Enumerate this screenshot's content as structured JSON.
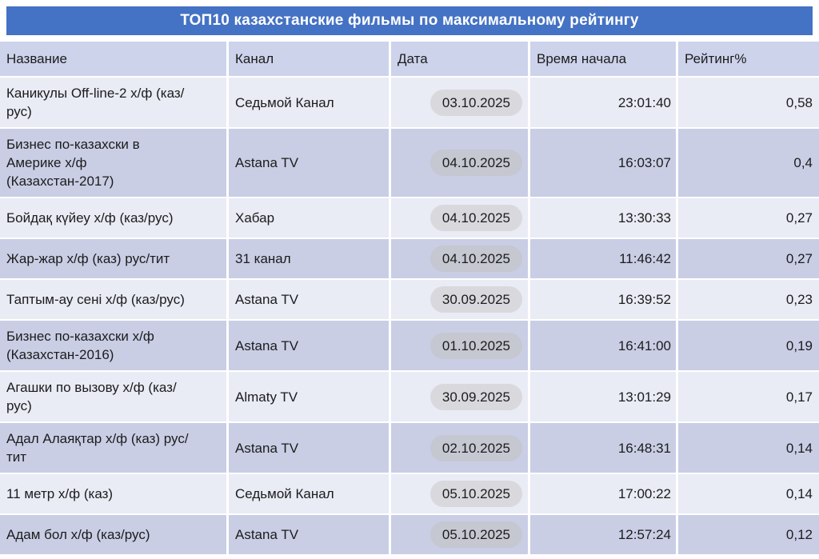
{
  "title": "ТОП10 казахстанские фильмы по максимальному рейтингу",
  "chart_data": {
    "type": "table",
    "title": "ТОП10 казахстанские фильмы по максимальному рейтингу",
    "columns": [
      "Название",
      "Канал",
      "Дата",
      "Время начала",
      "Рейтинг%"
    ],
    "rows": [
      {
        "name": "Каникулы Off-line-2 х/ф (каз/рус)",
        "channel": "Седьмой Канал",
        "date": "03.10.2025",
        "time": "23:01:40",
        "rating": "0,58"
      },
      {
        "name": "Бизнес по-казахски в Америке х/ф (Казахстан-2017)",
        "channel": "Astana TV",
        "date": "04.10.2025",
        "time": "16:03:07",
        "rating": "0,4"
      },
      {
        "name": "Бойдақ күйеу х/ф (каз/рус)",
        "channel": "Хабар",
        "date": "04.10.2025",
        "time": "13:30:33",
        "rating": "0,27"
      },
      {
        "name": "Жар-жар х/ф (каз) рус/тит",
        "channel": "31 канал",
        "date": "04.10.2025",
        "time": "11:46:42",
        "rating": "0,27"
      },
      {
        "name": "Таптым-ау сені х/ф (каз/рус)",
        "channel": "Astana TV",
        "date": "30.09.2025",
        "time": "16:39:52",
        "rating": "0,23"
      },
      {
        "name": "Бизнес по-казахски х/ф (Казахстан-2016)",
        "channel": "Astana TV",
        "date": "01.10.2025",
        "time": "16:41:00",
        "rating": "0,19"
      },
      {
        "name": "Агашки по вызову х/ф (каз/рус)",
        "channel": "Almaty TV",
        "date": "30.09.2025",
        "time": "13:01:29",
        "rating": "0,17"
      },
      {
        "name": "Адал Алаяқтар х/ф (каз) рус/тит",
        "channel": "Astana TV",
        "date": "02.10.2025",
        "time": "16:48:31",
        "rating": "0,14"
      },
      {
        "name": "11 метр х/ф (каз)",
        "channel": "Седьмой Канал",
        "date": "05.10.2025",
        "time": "17:00:22",
        "rating": "0,14"
      },
      {
        "name": "Адам бол х/ф (каз/рус)",
        "channel": "Astana TV",
        "date": "05.10.2025",
        "time": "12:57:24",
        "rating": "0,12"
      }
    ]
  },
  "colors": {
    "accent_blue": "#4472C4",
    "title_text": "#FFFFFF",
    "header_row_bg": "#CDD3EB",
    "row_light_bg": "#E9EBF5",
    "row_dark_bg": "#C9CEE5",
    "pill_on_light_bg": "#D9D9DD",
    "pill_on_dark_bg": "#C5C7D1",
    "text_dark": "#1C1C1C",
    "separator": "#FFFFFF"
  }
}
